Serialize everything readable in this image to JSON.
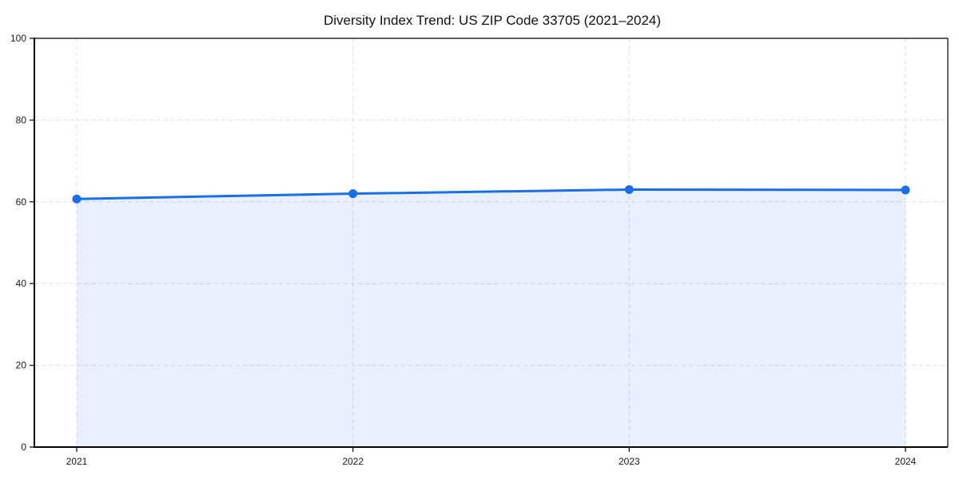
{
  "chart_data": {
    "type": "line",
    "title": "Diversity Index Trend: US ZIP Code 33705 (2021–2024)",
    "categories": [
      "2021",
      "2022",
      "2023",
      "2024"
    ],
    "values": [
      60.7,
      62.0,
      63.0,
      62.9
    ],
    "xlabel": "",
    "ylabel": "",
    "ylim": [
      0,
      100
    ],
    "yticks": [
      0,
      20,
      40,
      60,
      80,
      100
    ],
    "grid": true,
    "grid_style": "dashed",
    "legend": false,
    "area_fill": true,
    "marker": "circle",
    "line_color": "#1a6ee8",
    "fill_color": "rgba(26,110,232,0.10)",
    "grid_color": "#dedede",
    "spine_color": "#000000",
    "text_color": "#111111",
    "background_color": "#ffffff"
  }
}
